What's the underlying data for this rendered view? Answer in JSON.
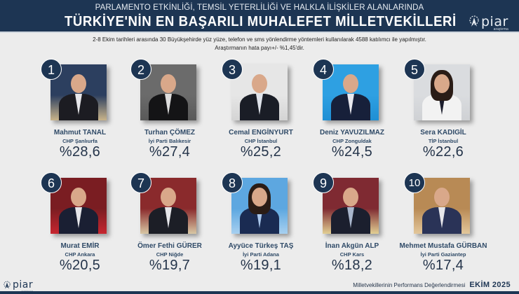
{
  "header": {
    "subtitle": "PARLAMENTO ETKİNLİĞİ, TEMSİL YETERLİLİĞİ VE HALKLA İLİŞKİLER ALANLARINDA",
    "title": "TÜRKİYE'NİN EN BAŞARILI MUHALEFET MİLLETVEKİLLERİ",
    "logo": {
      "word": "piar",
      "tagline": "araştırma",
      "icon": "piar-logo-icon"
    }
  },
  "intro": {
    "line1": "2-8 Ekim tarihleri arasında 30 Büyükşehirde yüz yüze, telefon ve sms yönlendirme yöntemleri kullanılarak 4588 katılımcı ile yapılmıştır.",
    "line2": "Araştırmanın hata payı+/- %1,45'dir."
  },
  "colors": {
    "navy": "#1d3553",
    "text": "#2f4a67",
    "background": "#ececec"
  },
  "deputies": [
    {
      "rank": "1",
      "name": "Mahmut TANAL",
      "party": "CHP Şanlıurfa",
      "score": "%28,6",
      "photo_bg": "#2c3f5f",
      "photo_bg2": "#c9b48a",
      "suit": "#1c1c22",
      "shirt": "#e6e6ea"
    },
    {
      "rank": "2",
      "name": "Turhan ÇÖMEZ",
      "party": "İyi Parti Balıkesir",
      "score": "%27,4",
      "photo_bg": "#6b6b6b",
      "photo_bg2": "#595959",
      "suit": "#141416",
      "shirt": "#dcdcdc"
    },
    {
      "rank": "3",
      "name": "Cemal ENGİNYURT",
      "party": "CHP İstanbul",
      "score": "%25,2",
      "photo_bg": "#e6e6e6",
      "photo_bg2": "#d4d4d4",
      "suit": "#1a1d26",
      "shirt": "#dfe3ea"
    },
    {
      "rank": "4",
      "name": "Deniz YAVUZILMAZ",
      "party": "CHP Zonguldak",
      "score": "%24,5",
      "photo_bg": "#2ea0e2",
      "photo_bg2": "#1f8fd4",
      "suit": "#17203a",
      "shirt": "#e8e8ee"
    },
    {
      "rank": "5",
      "name": "Sera KADIGİL",
      "party": "TİP İstanbul",
      "score": "%22,6",
      "photo_bg": "#dadcdf",
      "photo_bg2": "#cfd1d4",
      "suit": "#f2f2f2",
      "shirt": "#1b1d2c"
    },
    {
      "rank": "6",
      "name": "Murat EMİR",
      "party": "CHP Ankara",
      "score": "%20,5",
      "photo_bg": "#7a1d22",
      "photo_bg2": "#c7262f",
      "suit": "#1a1f33",
      "shirt": "#e6e6ea"
    },
    {
      "rank": "7",
      "name": "Ömer Fethi GÜRER",
      "party": "CHP Niğde",
      "score": "%19,7",
      "photo_bg": "#8a2a2c",
      "photo_bg2": "#d8c7a4",
      "suit": "#1c1e26",
      "shirt": "#e6e6ea"
    },
    {
      "rank": "8",
      "name": "Ayyüce Türkeş TAŞ",
      "party": "İyi Parti Adana",
      "score": "%19,1",
      "photo_bg": "#5da7e0",
      "photo_bg2": "#a7d0f0",
      "suit": "#1a2b52",
      "shirt": "#a9c6ea"
    },
    {
      "rank": "9",
      "name": "İnan Akgün ALP",
      "party": "CHP Kars",
      "score": "%18,2",
      "photo_bg": "#7f2a32",
      "photo_bg2": "#e2cf93",
      "suit": "#1b1f2e",
      "shirt": "#a9b6cc"
    },
    {
      "rank": "10",
      "name": "Mehmet Mustafa GÜRBAN",
      "party": "İyi Parti Gaziantep",
      "score": "%17,4",
      "photo_bg": "#b88a55",
      "photo_bg2": "#e3c79b",
      "suit": "#2a3357",
      "shirt": "#e6e6ea"
    }
  ],
  "footer": {
    "label": "Milletvekillerinin Performans Değerlendirmesi",
    "date": "EKİM 2025",
    "logo": {
      "word": "piar",
      "tagline": "araştırma"
    }
  }
}
